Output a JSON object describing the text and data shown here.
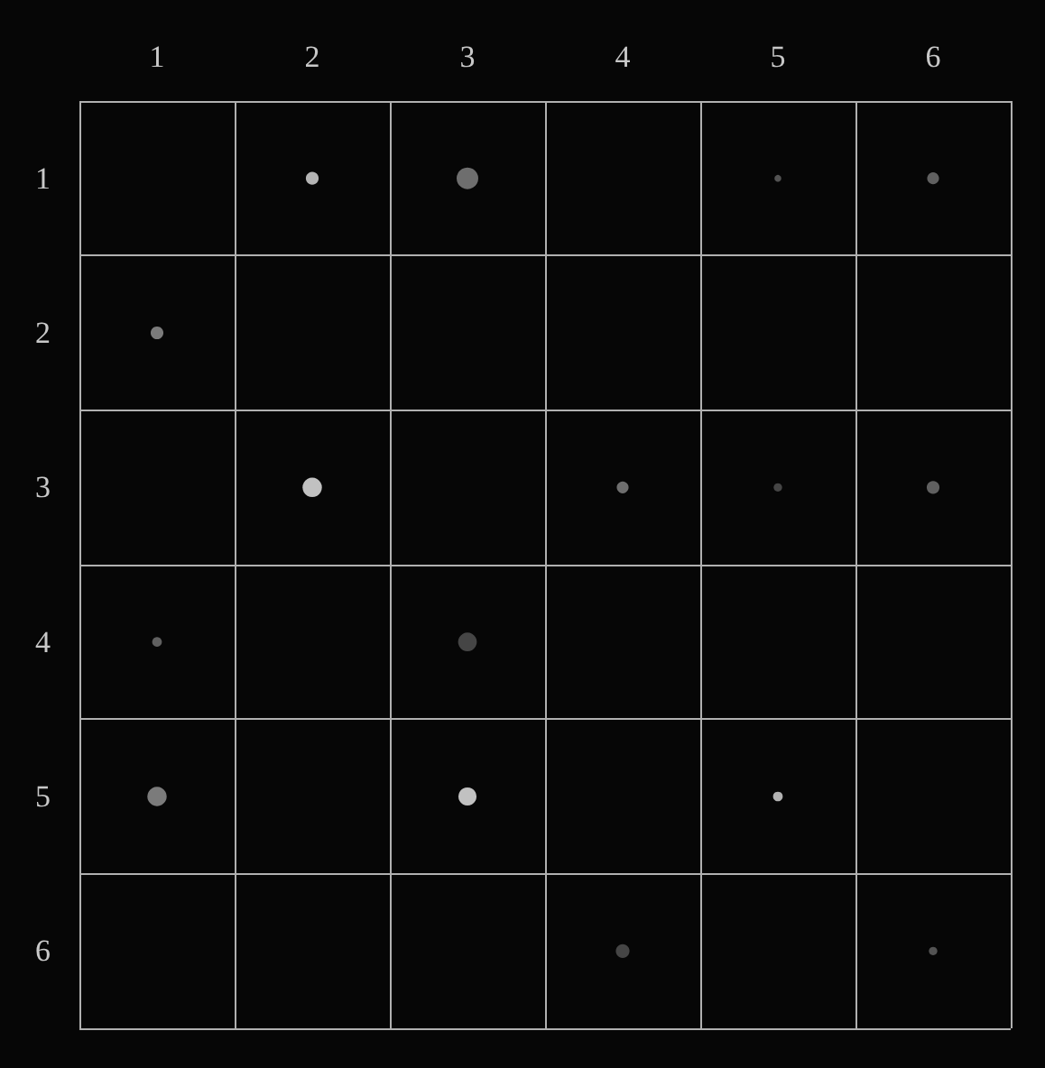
{
  "chart_data": {
    "type": "bubble",
    "x": [
      2,
      3,
      5,
      6,
      1,
      2,
      4,
      5,
      6,
      1,
      3,
      1,
      3,
      5,
      4,
      6
    ],
    "values": [
      1,
      1,
      1,
      1,
      2,
      3,
      3,
      3,
      3,
      4,
      4,
      5,
      5,
      5,
      6,
      6
    ],
    "sizes": [
      0.35,
      1,
      0.1,
      0.3,
      0.35,
      0.8,
      0.3,
      0.15,
      0.35,
      0.2,
      0.75,
      0.8,
      0.7,
      0.2,
      0.4,
      0.15
    ],
    "colors": [
      "#e0e0e0",
      "#888888",
      "#666666",
      "#777777",
      "#999999",
      "#f0f0f0",
      "#888888",
      "#555555",
      "#777777",
      "#777777",
      "#555555",
      "#999999",
      "#f0f0f0",
      "#dddddd",
      "#555555",
      "#666666"
    ],
    "xlim": [
      0.5,
      6.5
    ],
    "xticks": [
      {
        "value": 0.5,
        "label": null
      },
      1,
      {
        "value": 1.5,
        "label": null
      },
      2,
      {
        "value": 2.5,
        "label": null
      },
      3,
      {
        "value": 3.5,
        "label": null
      },
      4,
      {
        "value": 4.5,
        "label": null
      },
      5,
      {
        "value": 5.5,
        "label": null
      },
      6,
      {
        "value": 6.5,
        "label": null
      }
    ],
    "ylim": [
      6.5,
      0.5
    ],
    "yticks": [
      {
        "value": 0.5,
        "label": null
      },
      1,
      {
        "value": 1.5,
        "label": null
      },
      2,
      {
        "value": 2.5,
        "label": null
      },
      3,
      {
        "value": 3.5,
        "label": null
      },
      4,
      {
        "value": 4.5,
        "label": null
      },
      5,
      {
        "value": 5.5,
        "label": null
      },
      6,
      {
        "value": 6.5,
        "label": null
      }
    ],
    "grid": true
  }
}
